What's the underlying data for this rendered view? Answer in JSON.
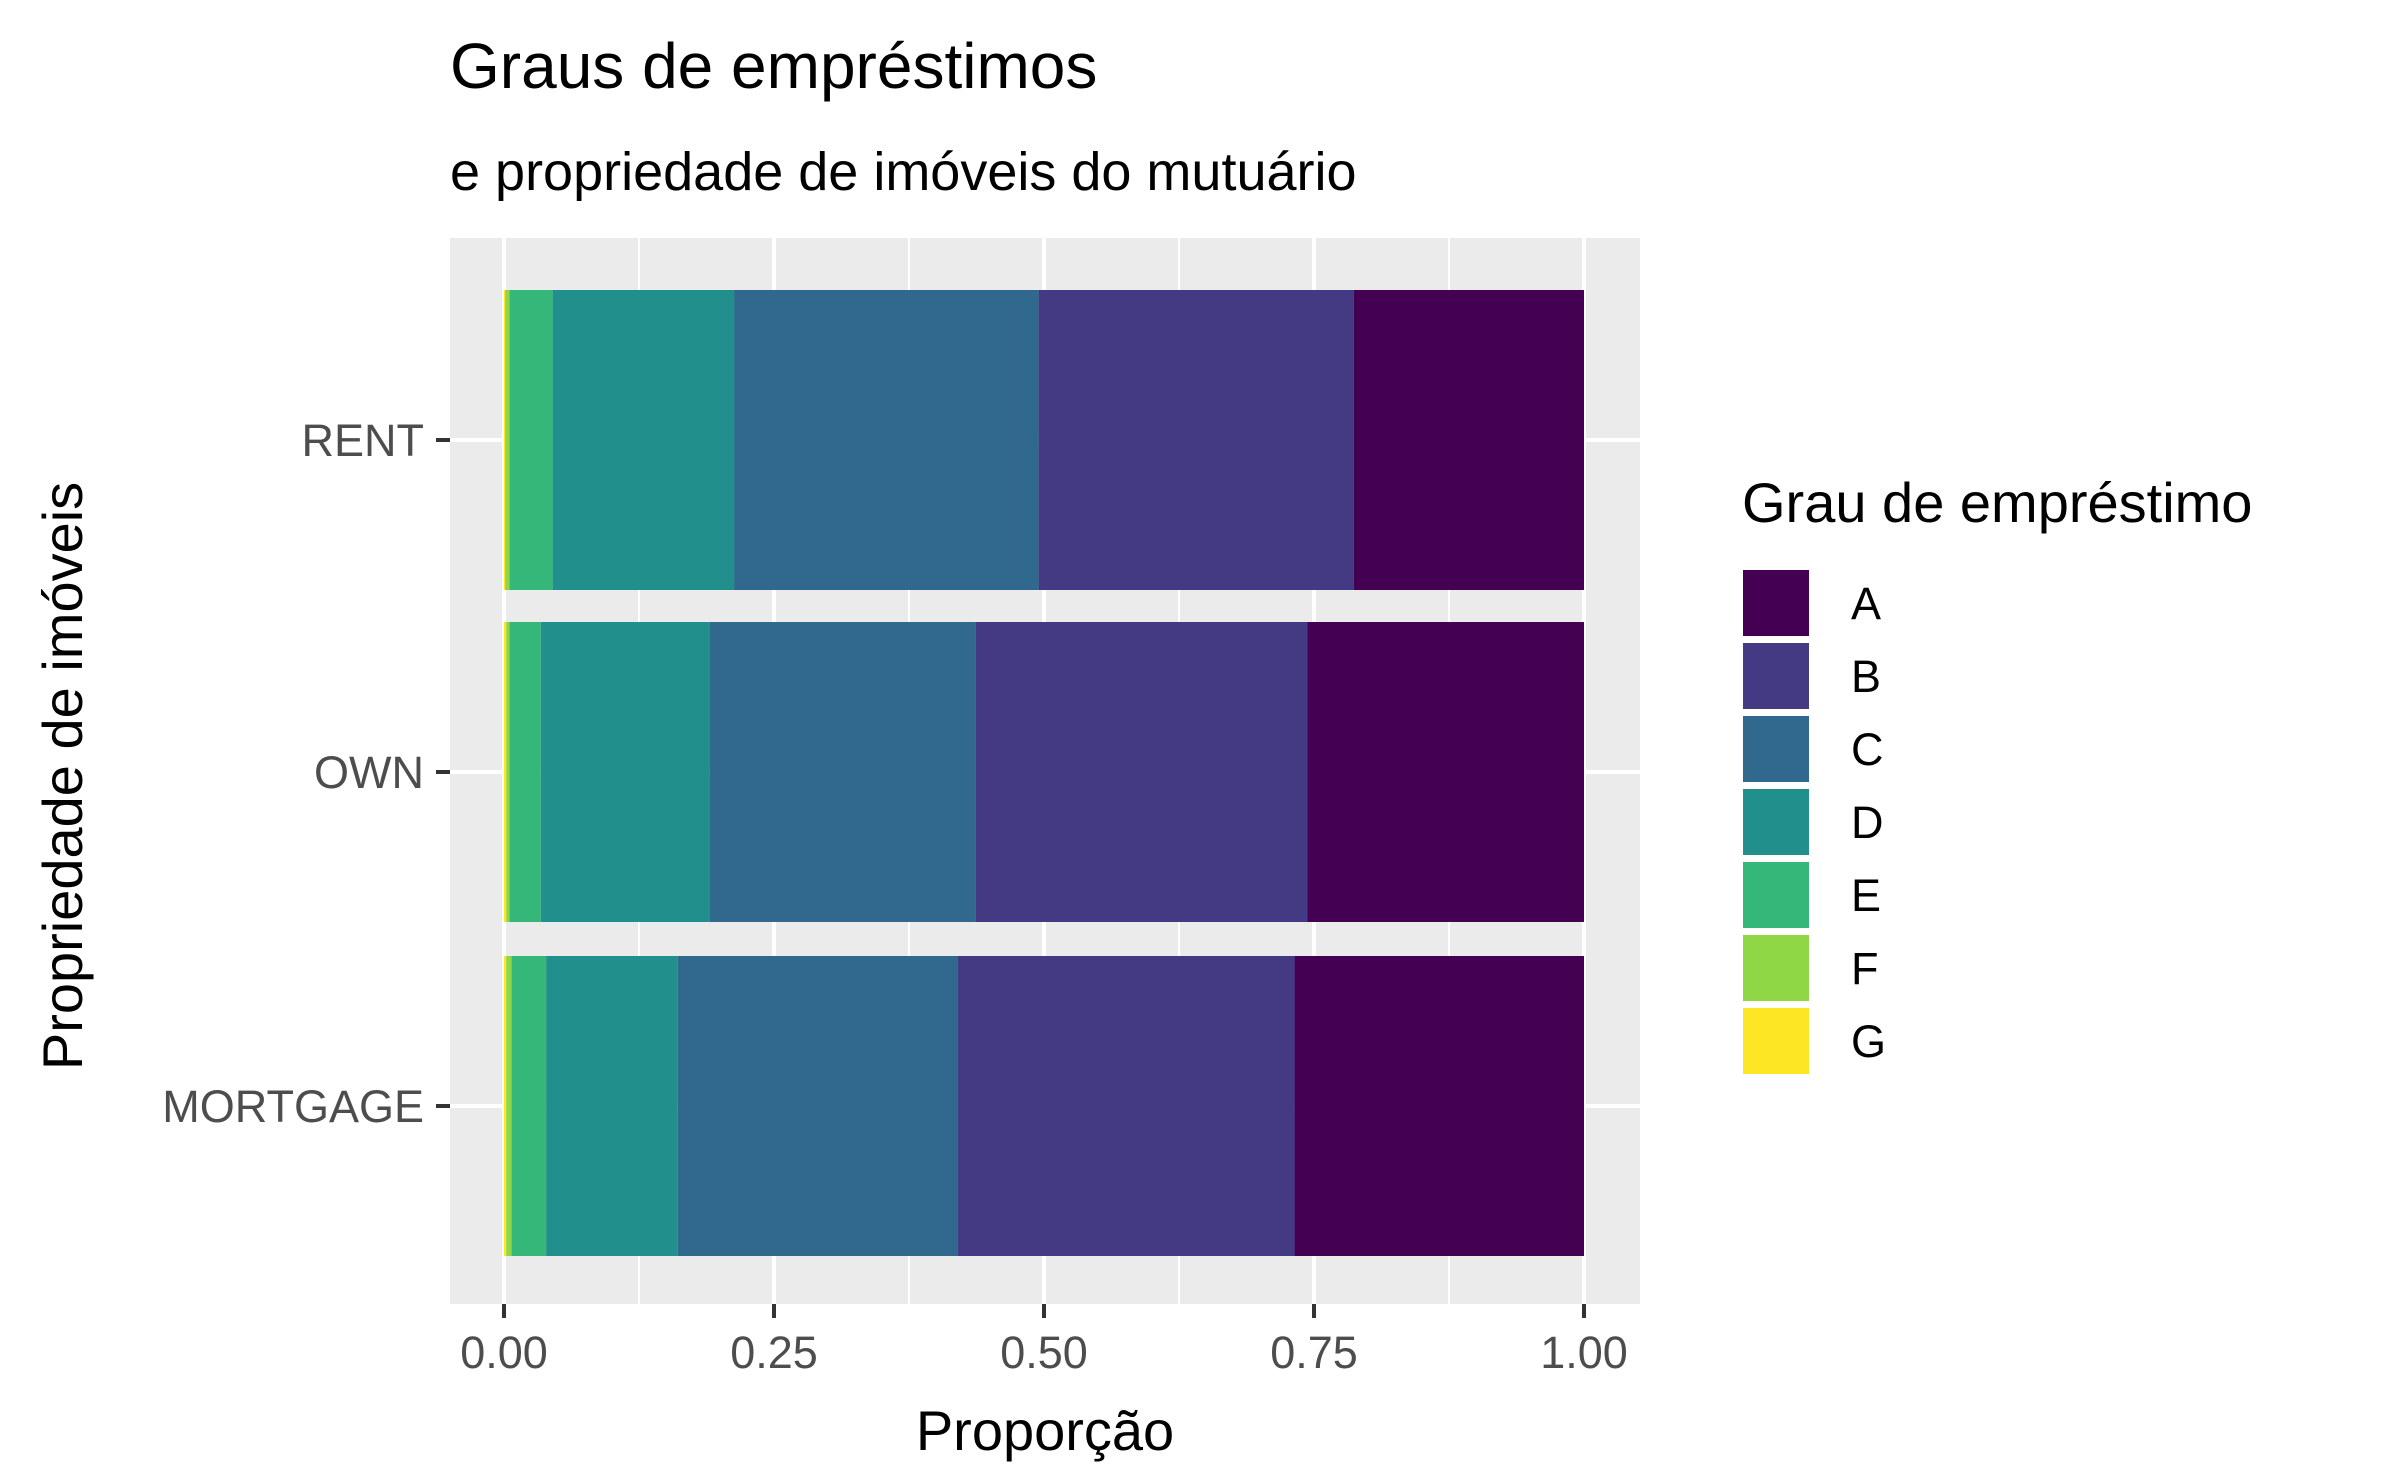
{
  "chart_data": {
    "type": "bar",
    "orientation": "horizontal",
    "stacked": true,
    "title": "Graus de empréstimos",
    "subtitle": "e propriedade de imóveis do mutuário",
    "xlabel": "Proporção",
    "ylabel": "Propriedade de imóveis",
    "xlim": [
      0,
      1
    ],
    "x_ticks": [
      "0.00",
      "0.25",
      "0.50",
      "0.75",
      "1.00"
    ],
    "x_tick_values": [
      0,
      0.25,
      0.5,
      0.75,
      1.0
    ],
    "categories": [
      "RENT",
      "OWN",
      "MORTGAGE"
    ],
    "grid": true,
    "legend_title": "Grau de empréstimo",
    "legend_position": "right",
    "series": [
      {
        "name": "A",
        "color": "#440154",
        "values": [
          0.213,
          0.256,
          0.268
        ]
      },
      {
        "name": "B",
        "color": "#443983",
        "values": [
          0.292,
          0.307,
          0.312
        ]
      },
      {
        "name": "C",
        "color": "#31688E",
        "values": [
          0.282,
          0.247,
          0.259
        ]
      },
      {
        "name": "D",
        "color": "#21908C",
        "values": [
          0.168,
          0.156,
          0.122
        ]
      },
      {
        "name": "E",
        "color": "#35B779",
        "values": [
          0.04,
          0.029,
          0.032
        ]
      },
      {
        "name": "F",
        "color": "#8FD744",
        "values": [
          0.004,
          0.003,
          0.005
        ]
      },
      {
        "name": "G",
        "color": "#FDE725",
        "values": [
          0.001,
          0.002,
          0.002
        ]
      }
    ]
  }
}
